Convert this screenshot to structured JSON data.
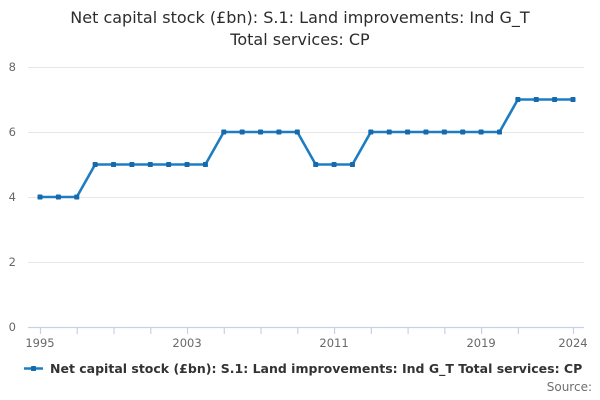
{
  "title": {
    "line1": "Net capital stock (£bn): S.1: Land improvements: Ind G_T",
    "line2": "Total services: CP"
  },
  "legend": {
    "label": "Net capital stock (£bn): S.1: Land improvements: Ind G_T Total services: CP"
  },
  "source_label": "Source:",
  "colors": {
    "series": "#1e7dc2",
    "marker": "#1569ad",
    "grid": "#e7e7e7",
    "axis": "#c5d1e8",
    "tick_label": "#686868"
  },
  "chart_data": {
    "type": "line",
    "title": "Net capital stock (£bn): S.1: Land improvements: Ind G_T Total services: CP",
    "x": [
      1995,
      1996,
      1997,
      1998,
      1999,
      2000,
      2001,
      2002,
      2003,
      2004,
      2005,
      2006,
      2007,
      2008,
      2009,
      2010,
      2011,
      2012,
      2013,
      2014,
      2015,
      2016,
      2017,
      2018,
      2019,
      2020,
      2021,
      2022,
      2023,
      2024
    ],
    "series": [
      {
        "name": "Net capital stock (£bn): S.1: Land improvements: Ind G_T Total services: CP",
        "values": [
          4,
          4,
          4,
          5,
          5,
          5,
          5,
          5,
          5,
          5,
          6,
          6,
          6,
          6,
          6,
          5,
          5,
          5,
          6,
          6,
          6,
          6,
          6,
          6,
          6,
          6,
          7,
          7,
          7,
          7
        ]
      }
    ],
    "xlabel": "",
    "ylabel": "",
    "ylim": [
      0,
      8
    ],
    "yticks": [
      0,
      2,
      4,
      6,
      8
    ],
    "xticks_labeled": [
      1995,
      2003,
      2011,
      2019,
      2024
    ],
    "xticks_minor": [
      1995,
      1997,
      1999,
      2001,
      2003,
      2005,
      2007,
      2009,
      2011,
      2013,
      2015,
      2017,
      2019,
      2021,
      2024
    ],
    "grid": "horizontal",
    "legend_position": "bottom-left",
    "marker": "square"
  }
}
